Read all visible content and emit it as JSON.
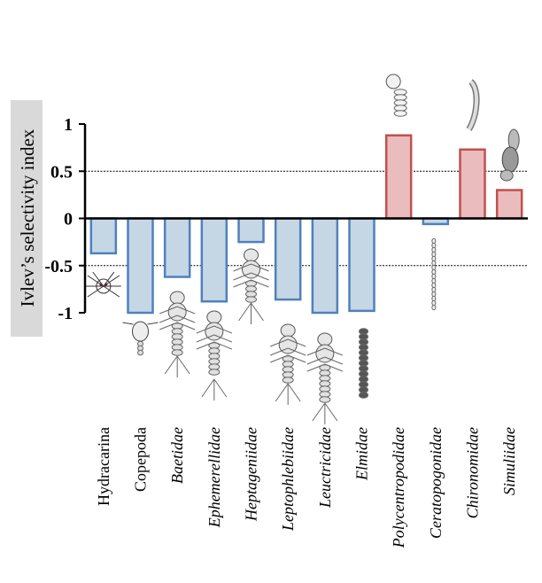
{
  "chart_data": {
    "type": "bar",
    "title": "",
    "xlabel": "",
    "ylabel": "Ivlev’s selectivity index",
    "ylim": [
      -1,
      1
    ],
    "yticks": [
      1,
      0.5,
      0,
      -0.5,
      -1
    ],
    "ytick_labels": [
      "1",
      "0.5",
      "0",
      "-0.5",
      "-1"
    ],
    "reference_lines": [
      0.5,
      -0.5
    ],
    "categories": [
      "Hydracarina",
      "Copepoda",
      "Baetidae",
      "Ephemerellidae",
      "Heptageniidae",
      "Leptophlebiidae",
      "Leuctricidae",
      "Elmidae",
      "Polycentropodidae",
      "Ceratopogonidae",
      "Chironomidae",
      "Simuliidae"
    ],
    "italic": [
      false,
      false,
      true,
      true,
      true,
      true,
      true,
      true,
      true,
      true,
      true,
      true
    ],
    "values": [
      -0.37,
      -1.0,
      -0.62,
      -0.88,
      -0.25,
      -0.86,
      -1.0,
      -0.98,
      0.88,
      -0.06,
      0.73,
      0.3
    ],
    "colors": {
      "negative_fill": "#c5d7e5",
      "negative_stroke": "#4f81bd",
      "positive_fill": "#ebbcbe",
      "positive_stroke": "#c0504d",
      "ylabel_box": "#d9d9d9"
    }
  }
}
